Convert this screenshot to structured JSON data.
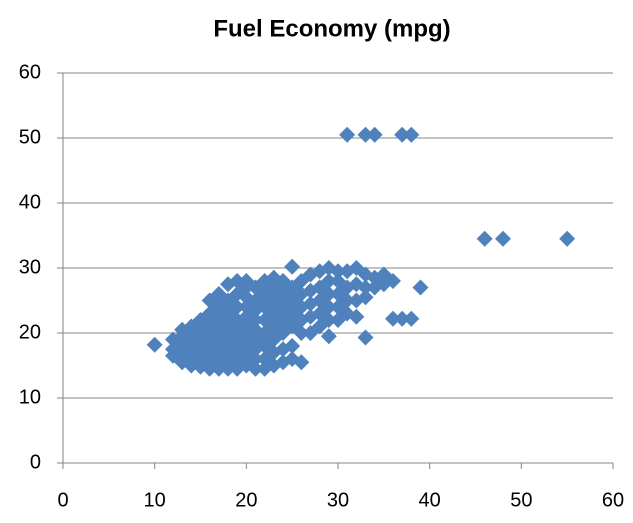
{
  "chart_data": {
    "type": "scatter",
    "title": "Fuel Economy (mpg)",
    "color": "#4f81bd",
    "grid": true,
    "xlim": [
      0,
      60
    ],
    "xticks": [
      0,
      10,
      20,
      30,
      40,
      50,
      60
    ],
    "ylim": [
      0,
      60
    ],
    "yticks": [
      0,
      10,
      20,
      30,
      40,
      50,
      60
    ],
    "x": [
      12,
      12,
      12,
      13,
      13,
      13,
      13,
      13,
      14,
      14,
      14,
      14,
      14,
      14,
      15,
      15,
      15,
      15,
      15,
      15,
      16,
      16,
      16,
      16,
      16,
      16,
      16,
      16,
      17,
      17,
      17,
      17,
      17,
      17,
      17,
      17,
      18,
      18,
      18,
      18,
      18,
      18,
      18,
      18,
      18,
      19,
      19,
      19,
      19,
      19,
      19,
      19,
      19,
      19,
      20,
      20,
      20,
      20,
      20,
      20,
      20,
      20,
      20,
      20,
      21,
      21,
      21,
      21,
      21,
      21,
      21,
      21,
      21,
      22,
      22,
      22,
      22,
      22,
      22,
      22,
      22,
      23,
      23,
      23,
      23,
      23,
      23,
      23,
      23,
      24,
      24,
      24,
      24,
      24,
      24,
      24,
      25,
      25,
      25,
      25,
      25,
      25,
      25,
      26,
      26,
      26,
      26,
      26,
      26,
      27,
      27,
      27,
      27,
      27,
      28,
      28,
      28,
      28,
      28,
      29,
      29,
      29,
      29,
      29,
      29,
      30,
      30,
      30,
      30,
      30,
      31,
      31,
      31,
      31,
      32,
      32,
      32,
      32,
      33,
      33,
      33,
      33,
      34,
      34,
      35,
      35,
      36,
      36,
      10,
      31,
      33,
      34,
      37,
      38,
      46,
      48,
      55,
      39,
      37,
      38
    ],
    "values": [
      16.5,
      17.5,
      19,
      15.5,
      16.5,
      18,
      19.5,
      20.5,
      15,
      16,
      17,
      18.5,
      20,
      21,
      14.8,
      16,
      17.5,
      19,
      20.5,
      22,
      14.5,
      15.5,
      17,
      18.5,
      20,
      21.5,
      23,
      25,
      14.5,
      16,
      17.5,
      19,
      20.5,
      22,
      24,
      26,
      14.5,
      15.5,
      17,
      18.5,
      20,
      21.5,
      23,
      25,
      27.5,
      14.5,
      16,
      17.5,
      19,
      20.5,
      22,
      24,
      26,
      28,
      15,
      16.5,
      18,
      19.5,
      21,
      22.5,
      24,
      25.5,
      27,
      28,
      14.5,
      16,
      17.5,
      19,
      20.5,
      22,
      23.5,
      25,
      27,
      14.5,
      16,
      18,
      20,
      22,
      24,
      26,
      28,
      15,
      17,
      19,
      21,
      23,
      25,
      27,
      28.5,
      15.5,
      17.5,
      20,
      22,
      24,
      26,
      28,
      16,
      18,
      21,
      23,
      25,
      27,
      30.2,
      15.5,
      20,
      22,
      24,
      26,
      28,
      20,
      22.5,
      24.5,
      26.5,
      29,
      21,
      23,
      25,
      27,
      29.5,
      19.5,
      22,
      24,
      26,
      28,
      30,
      22,
      24,
      26,
      28,
      29.5,
      23,
      25,
      27,
      29.5,
      22.5,
      25,
      27.5,
      30,
      19.3,
      25.5,
      27,
      29,
      27,
      28.5,
      27.5,
      29,
      22.2,
      28,
      18.2,
      50.5,
      50.5,
      50.5,
      50.5,
      50.5,
      34.5,
      34.5,
      34.5,
      27,
      22.2,
      22.2
    ]
  }
}
